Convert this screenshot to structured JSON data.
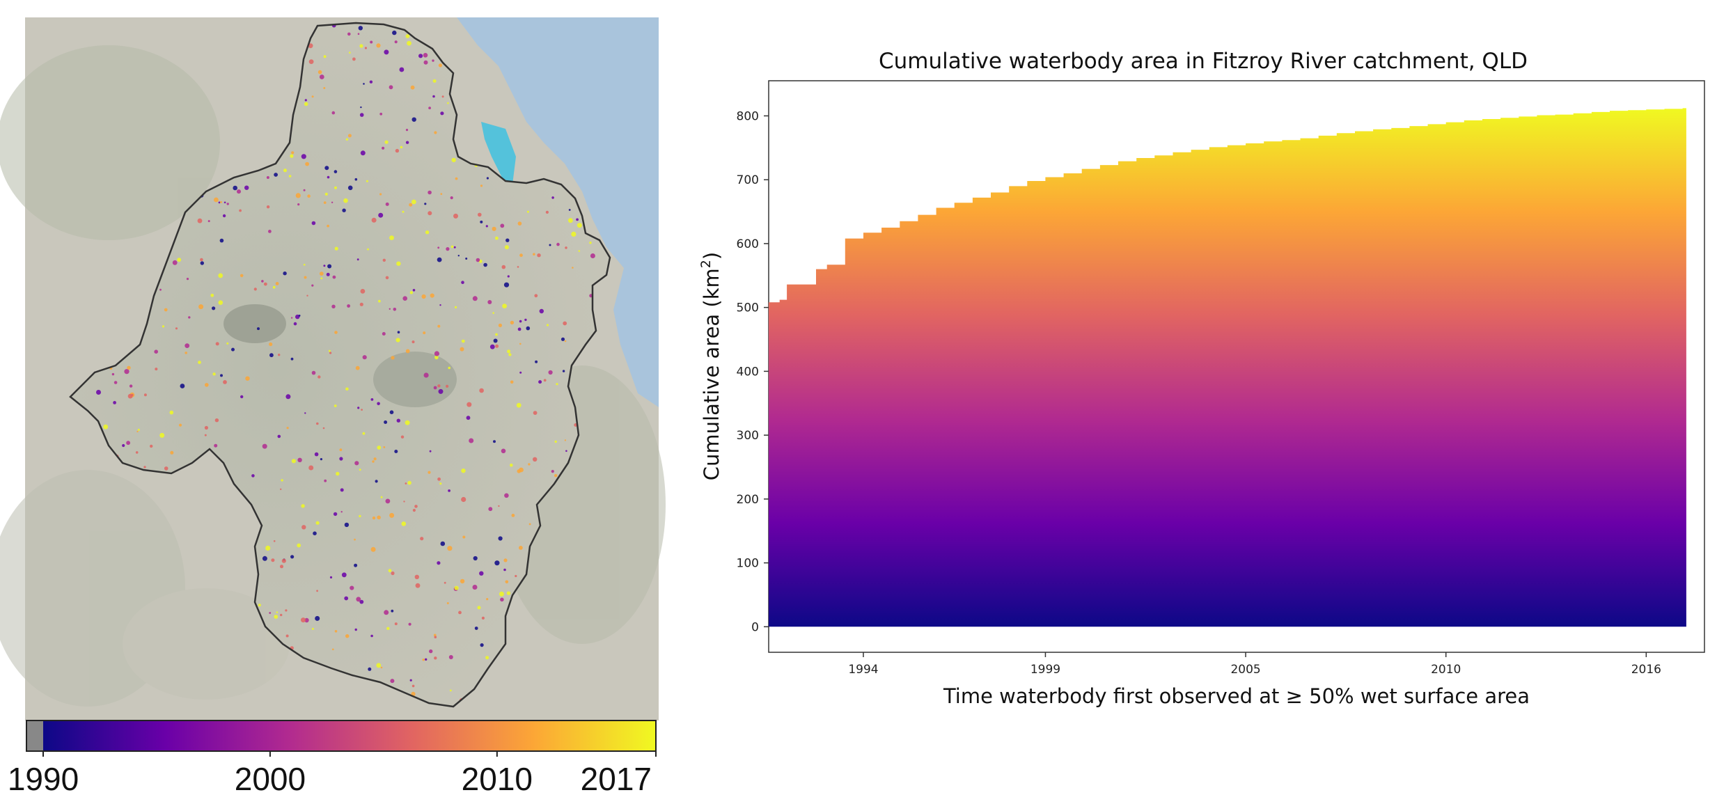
{
  "map": {
    "colorbar": {
      "ticks": [
        {
          "label": "1990",
          "year": 1990
        },
        {
          "label": "2000",
          "year": 2000
        },
        {
          "label": "2010",
          "year": 2010
        },
        {
          "label": "2017",
          "year": 2017
        }
      ],
      "range": [
        1990,
        2017
      ],
      "colormap": [
        "#0d0887",
        "#6a00a8",
        "#b12a90",
        "#e16462",
        "#fca636",
        "#f0f921"
      ],
      "nodata_color": "#888888"
    },
    "colors": {
      "background": "#c9c7bc",
      "water": "#a9c4dc",
      "lagoon": "#3fc1e0",
      "boundary": "#333333"
    }
  },
  "chart_data": {
    "type": "area",
    "title": "Cumulative waterbody area in Fitzroy River catchment, QLD",
    "xlabel": "Time waterbody first observed at ≥ 50% wet surface area",
    "ylabel": "Cumulative area (km",
    "ylabel_sup": "2",
    "ylabel_end": ")",
    "xlim": [
      1991.9,
      2017.6
    ],
    "ylim": [
      -40,
      855
    ],
    "x_ticks": [
      {
        "label": "1994",
        "value": 1994.5
      },
      {
        "label": "1999",
        "value": 1999.5
      },
      {
        "label": "2005",
        "value": 2005.0
      },
      {
        "label": "2010",
        "value": 2010.5
      },
      {
        "label": "2016",
        "value": 2016.0
      }
    ],
    "y_ticks": [
      0,
      100,
      200,
      300,
      400,
      500,
      600,
      700,
      800
    ],
    "colormap": [
      "#0d0887",
      "#6a00a8",
      "#b12a90",
      "#e16462",
      "#fca636",
      "#f0f921"
    ],
    "x": [
      1991.9,
      1992.2,
      1992.4,
      1993.2,
      1993.5,
      1994.0,
      1994.5,
      1995.0,
      1995.5,
      1996.0,
      1996.5,
      1997.0,
      1997.5,
      1998.0,
      1998.5,
      1999.0,
      1999.5,
      2000.0,
      2000.5,
      2001.0,
      2001.5,
      2002.0,
      2002.5,
      2003.0,
      2003.5,
      2004.0,
      2004.5,
      2005.0,
      2005.5,
      2006.0,
      2006.5,
      2007.0,
      2007.5,
      2008.0,
      2008.5,
      2009.0,
      2009.5,
      2010.0,
      2010.5,
      2011.0,
      2011.5,
      2012.0,
      2012.5,
      2013.0,
      2013.5,
      2014.0,
      2014.5,
      2015.0,
      2015.5,
      2016.0,
      2016.5,
      2017.0,
      2017.1
    ],
    "y": [
      508,
      512,
      536,
      560,
      567,
      608,
      617,
      625,
      635,
      645,
      656,
      664,
      672,
      680,
      690,
      698,
      704,
      710,
      717,
      723,
      729,
      734,
      738,
      743,
      747,
      751,
      754,
      757,
      760,
      762,
      765,
      769,
      773,
      776,
      779,
      781,
      784,
      787,
      790,
      793,
      795,
      797,
      799,
      801,
      802,
      804,
      806,
      808,
      809,
      810,
      811,
      812,
      812
    ]
  }
}
